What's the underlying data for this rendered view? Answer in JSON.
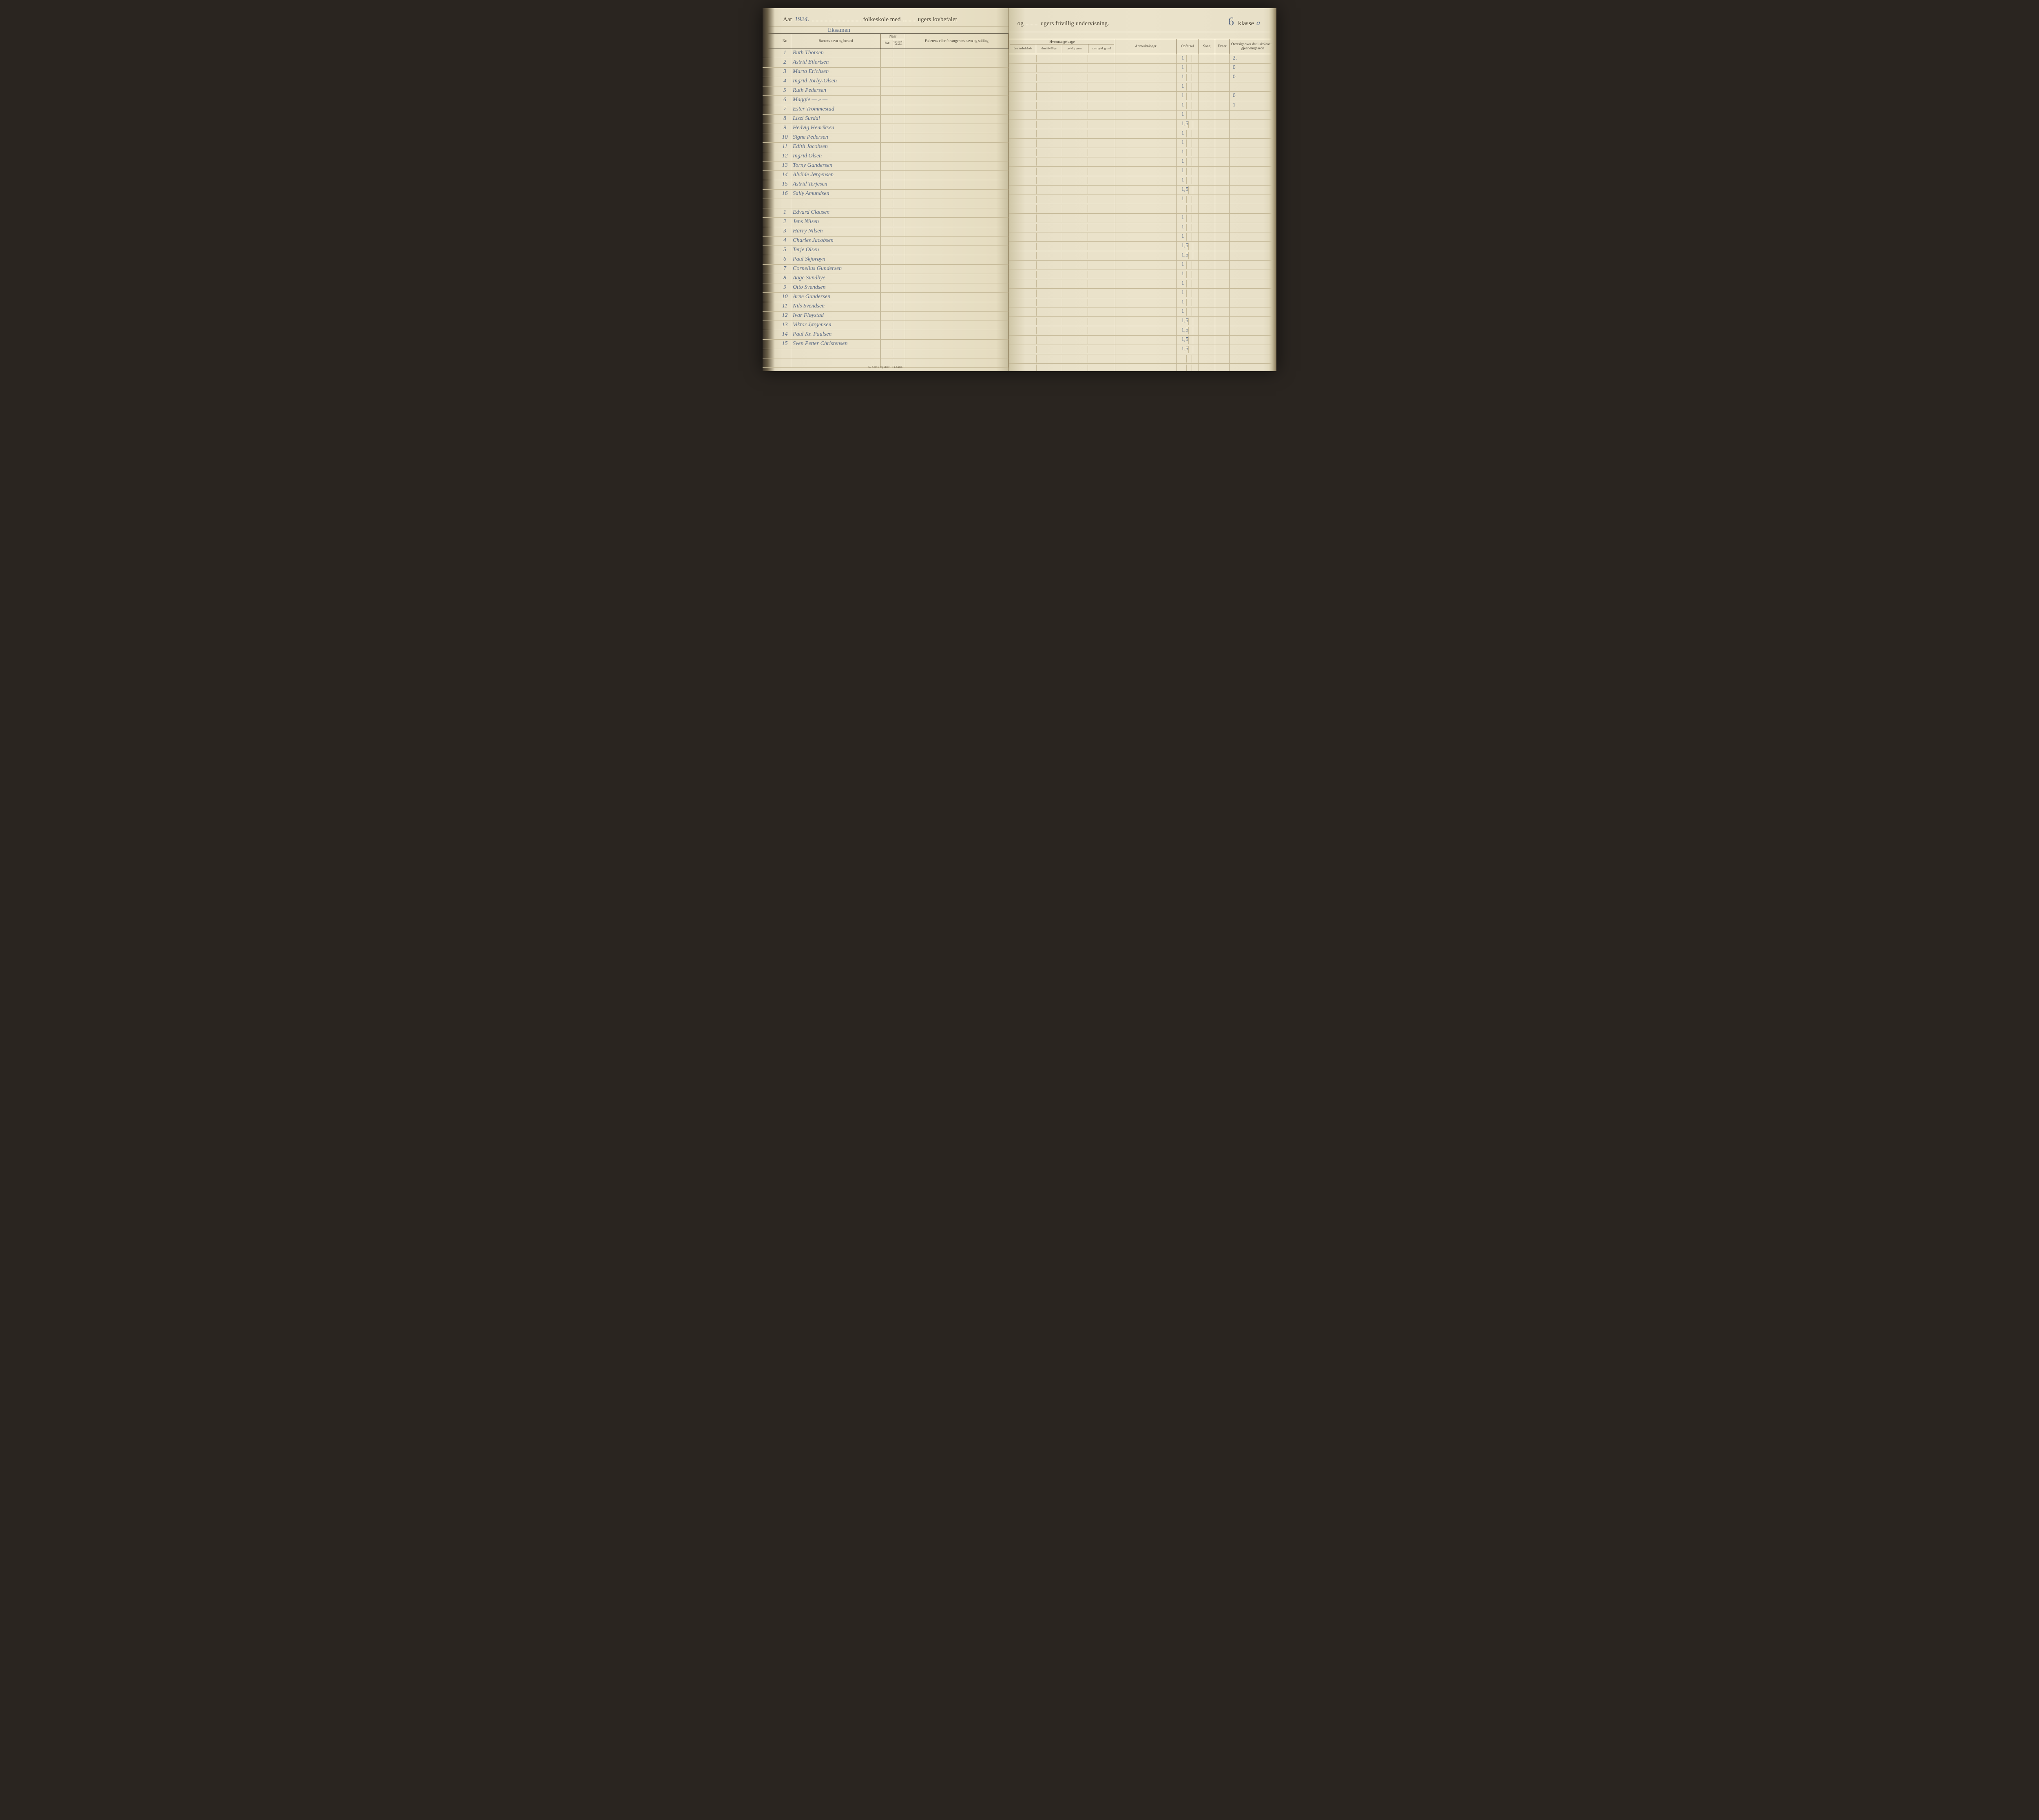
{
  "header": {
    "aar_label": "Aar",
    "year": "1924.",
    "subtitle": "Eksamen",
    "folkeskole": "folkeskole med",
    "ugers_lov": "ugers lovbefalet",
    "og": "og",
    "ugers_fri": "ugers frivillig undervisning.",
    "klasse_num": "6",
    "klasse_label": "klasse",
    "klasse_letter": "a"
  },
  "columns_left": {
    "nr": "Nr.",
    "navn": "Barnets navn og bosted",
    "naar": "Naar",
    "naar_sub1": "født",
    "naar_sub2": "optaget i skolen",
    "fader": "Faderens eller forsørgerens navn og stilling"
  },
  "columns_right": {
    "hvormange": "Hvormange dage",
    "hvor_sub1": "søgt skolen",
    "hvor_sub2": "forsømt den lovbefalede skole af",
    "hvor_sub1a": "den lovbefalede",
    "hvor_sub1b": "den frivillige",
    "hvor_sub2a": "gyldig grund",
    "hvor_sub2b": "uden gyld. grund",
    "anm": "Anmerkninger",
    "opforsel": "Opførsel",
    "sang": "Sang",
    "evner": "Evner",
    "oversigt": "Oversigt over det i skoleaaret gjennemgaaede"
  },
  "group1": [
    {
      "nr": "1",
      "name": "Ruth Thorsen",
      "opf": "1",
      "grade": "2."
    },
    {
      "nr": "2",
      "name": "Astrid Eilertsen",
      "opf": "1",
      "grade": "0"
    },
    {
      "nr": "3",
      "name": "Marta Erichsen",
      "opf": "1",
      "grade": "0"
    },
    {
      "nr": "4",
      "name": "Ingrid Torby-Olsen",
      "opf": "1",
      "grade": ""
    },
    {
      "nr": "5",
      "name": "Ruth Pedersen",
      "opf": "1",
      "grade": "0"
    },
    {
      "nr": "6",
      "name": "Maggie   — » —",
      "opf": "1",
      "grade": "1"
    },
    {
      "nr": "7",
      "name": "Ester Trommestad",
      "opf": "1",
      "grade": ""
    },
    {
      "nr": "8",
      "name": "Lizzi Surdal",
      "opf": "1,5",
      "grade": ""
    },
    {
      "nr": "9",
      "name": "Hedvig Henriksen",
      "opf": "1",
      "grade": ""
    },
    {
      "nr": "10",
      "name": "Signe Pedersen",
      "opf": "1",
      "grade": ""
    },
    {
      "nr": "11",
      "name": "Edith Jacobsen",
      "opf": "1",
      "grade": ""
    },
    {
      "nr": "12",
      "name": "Ingrid Olsen",
      "opf": "1",
      "grade": ""
    },
    {
      "nr": "13",
      "name": "Torny Gundersen",
      "opf": "1",
      "grade": ""
    },
    {
      "nr": "14",
      "name": "Alvilde Jørgensen",
      "opf": "1",
      "grade": ""
    },
    {
      "nr": "15",
      "name": "Astrid Terjesen",
      "opf": "1,5",
      "grade": ""
    },
    {
      "nr": "16",
      "name": "Sally Amundsen",
      "opf": "1",
      "grade": ""
    }
  ],
  "group2": [
    {
      "nr": "1",
      "name": "Edvard Clausen",
      "opf": "1",
      "grade": ""
    },
    {
      "nr": "2",
      "name": "Jens Nilsen",
      "opf": "1",
      "grade": ""
    },
    {
      "nr": "3",
      "name": "Harry Nilsen",
      "opf": "1",
      "grade": ""
    },
    {
      "nr": "4",
      "name": "Charles Jacobsen",
      "opf": "1,5",
      "grade": ""
    },
    {
      "nr": "5",
      "name": "Terje Olsen",
      "opf": "1,5",
      "grade": ""
    },
    {
      "nr": "6",
      "name": "Paul Skjørøyn",
      "opf": "1",
      "grade": ""
    },
    {
      "nr": "7",
      "name": "Cornelius Gundersen",
      "opf": "1",
      "grade": ""
    },
    {
      "nr": "8",
      "name": "Aage Sundbye",
      "opf": "1",
      "grade": ""
    },
    {
      "nr": "9",
      "name": "Otto Svendsen",
      "opf": "1",
      "grade": ""
    },
    {
      "nr": "10",
      "name": "Arne Gundersen",
      "opf": "1",
      "grade": ""
    },
    {
      "nr": "11",
      "name": "Nils Svendsen",
      "opf": "1",
      "grade": ""
    },
    {
      "nr": "12",
      "name": "Ivar Fløystad",
      "opf": "1,5",
      "grade": ""
    },
    {
      "nr": "13",
      "name": "Viktor Jørgensen",
      "opf": "1,5",
      "grade": ""
    },
    {
      "nr": "14",
      "name": "Paul Kr. Paulsen",
      "opf": "1,5",
      "grade": ""
    },
    {
      "nr": "15",
      "name": "Sven Petter Christensen",
      "opf": "1,5",
      "grade": ""
    }
  ],
  "imprint": "S. Sems trykkeri. Fr.hald.",
  "colors": {
    "paper": "#e8e0c8",
    "ink_printed": "#4a4335",
    "ink_handwritten": "#5a6a85",
    "rule_line": "#b5a988",
    "rule_heavy": "#4a4335"
  }
}
